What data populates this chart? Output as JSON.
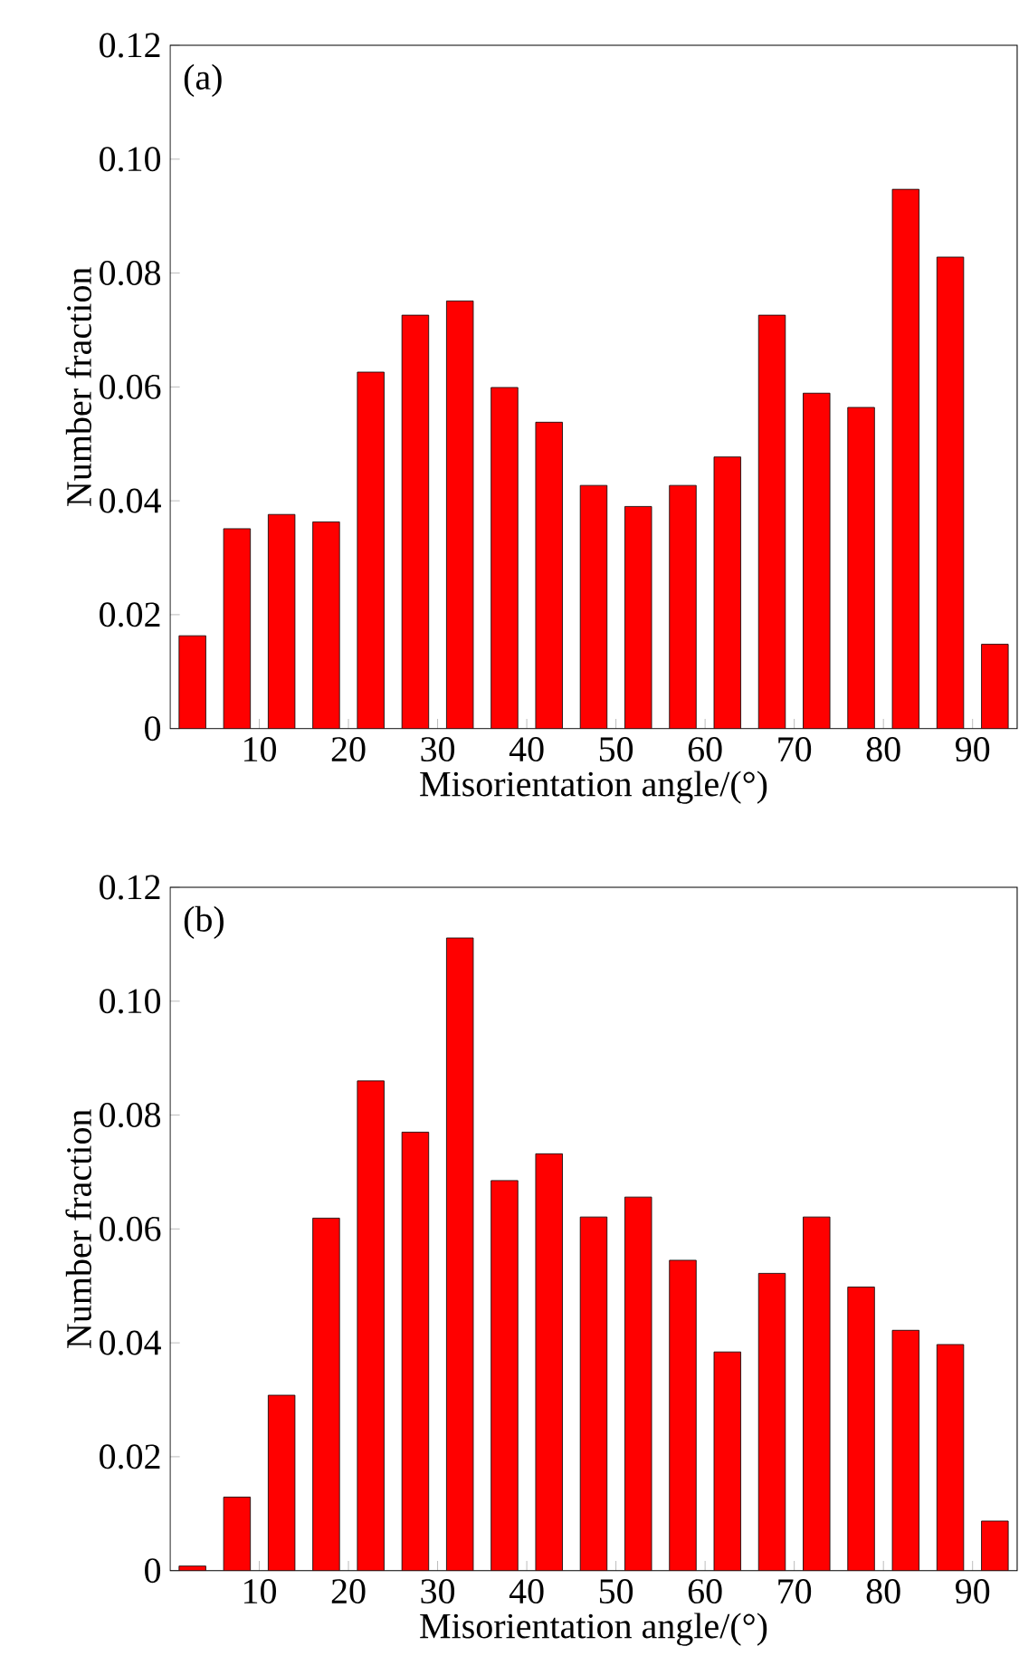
{
  "chart_data": [
    {
      "type": "bar",
      "annotations": [
        "(a)"
      ],
      "xlabel": "Misorientation angle/(°)",
      "ylabel": "Number fraction",
      "color": "#ff0000",
      "x": [
        2.5,
        7.5,
        12.5,
        17.5,
        22.5,
        27.5,
        32.5,
        37.5,
        42.5,
        47.5,
        52.5,
        57.5,
        62.5,
        67.5,
        72.5,
        77.5,
        82.5,
        87.5,
        92.5
      ],
      "values": [
        0.0163,
        0.0351,
        0.0376,
        0.0363,
        0.0626,
        0.0726,
        0.0751,
        0.0599,
        0.0538,
        0.0427,
        0.039,
        0.0427,
        0.0477,
        0.0726,
        0.0589,
        0.0564,
        0.0947,
        0.0828,
        0.0148
      ],
      "xlim": [
        0,
        95
      ],
      "xticks": [
        10,
        20,
        30,
        40,
        50,
        60,
        70,
        80,
        90
      ],
      "ylim": [
        0,
        0.12
      ],
      "yticks": [
        0,
        0.02,
        0.04,
        0.06,
        0.08,
        {
          "value": 0.1,
          "label": "0.10"
        },
        0.12
      ]
    },
    {
      "type": "bar",
      "annotations": [
        "(b)"
      ],
      "xlabel": "Misorientation angle/(°)",
      "ylabel": "Number fraction",
      "color": "#ff0000",
      "x": [
        2.5,
        7.5,
        12.5,
        17.5,
        22.5,
        27.5,
        32.5,
        37.5,
        42.5,
        47.5,
        52.5,
        57.5,
        62.5,
        67.5,
        72.5,
        77.5,
        82.5,
        87.5,
        92.5
      ],
      "values": [
        0.0008,
        0.0129,
        0.0308,
        0.0619,
        0.086,
        0.077,
        0.1111,
        0.0685,
        0.0732,
        0.0621,
        0.0656,
        0.0545,
        0.0384,
        0.0522,
        0.0621,
        0.0498,
        0.0422,
        0.0397,
        0.0087
      ],
      "xlim": [
        0,
        95
      ],
      "xticks": [
        10,
        20,
        30,
        40,
        50,
        60,
        70,
        80,
        90
      ],
      "ylim": [
        0,
        0.12
      ],
      "yticks": [
        0,
        0.02,
        0.04,
        0.06,
        0.08,
        {
          "value": 0.1,
          "label": "0.10"
        },
        0.12
      ]
    }
  ]
}
